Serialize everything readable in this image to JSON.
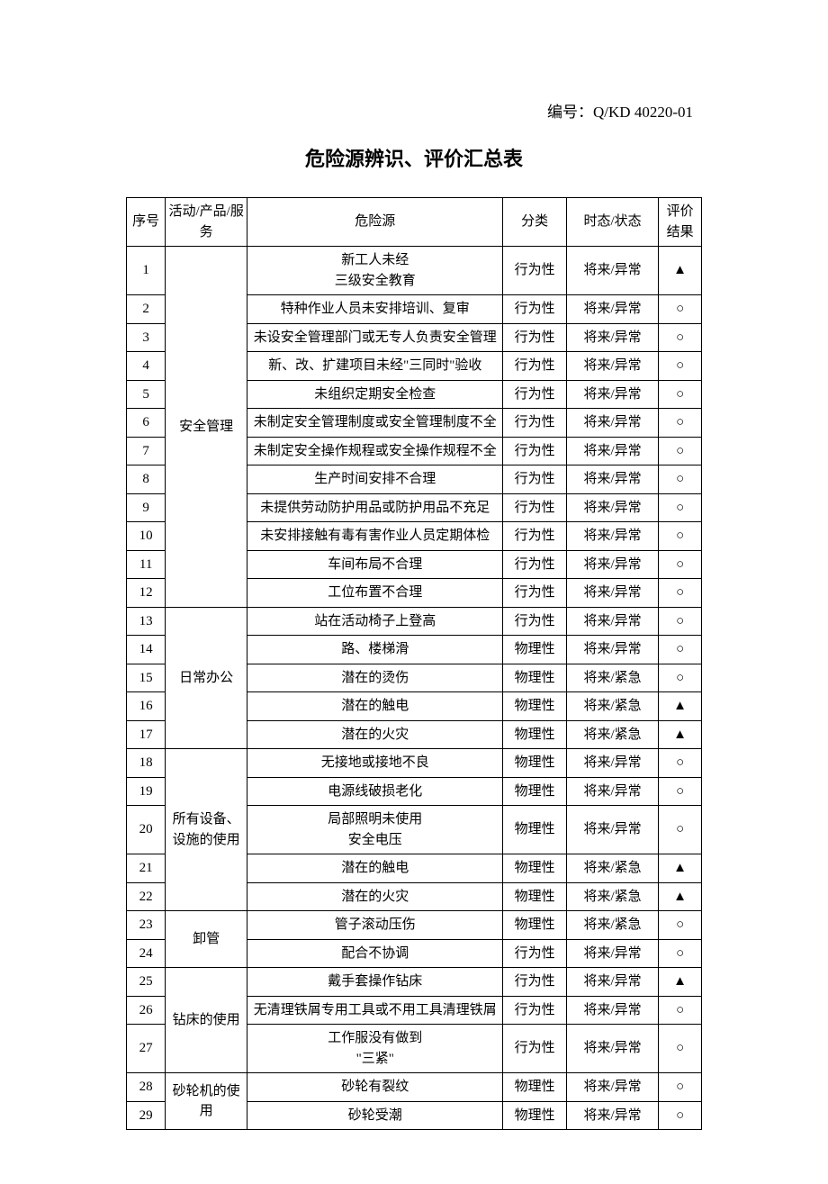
{
  "doc_number": "编号：Q/KD 40220-01",
  "title": "危险源辨识、评价汇总表",
  "headers": {
    "seq": "序号",
    "activity": "活动/产品/服务",
    "hazard": "危险源",
    "classification": "分类",
    "state": "时态/状态",
    "result": "评价结果"
  },
  "rows": [
    {
      "seq": "1",
      "activity": "安全管理",
      "hazard": "新工人未经\n三级安全教育",
      "classification": "行为性",
      "state": "将来/异常",
      "result": "▲"
    },
    {
      "seq": "2",
      "activity": "",
      "hazard": "特种作业人员未安排培训、复审",
      "classification": "行为性",
      "state": "将来/异常",
      "result": "○"
    },
    {
      "seq": "3",
      "activity": "",
      "hazard": "未设安全管理部门或无专人负责安全管理",
      "classification": "行为性",
      "state": "将来/异常",
      "result": "○"
    },
    {
      "seq": "4",
      "activity": "",
      "hazard": "新、改、扩建项目未经\"三同时\"验收",
      "classification": "行为性",
      "state": "将来/异常",
      "result": "○"
    },
    {
      "seq": "5",
      "activity": "",
      "hazard": "未组织定期安全检查",
      "classification": "行为性",
      "state": "将来/异常",
      "result": "○"
    },
    {
      "seq": "6",
      "activity": "",
      "hazard": "未制定安全管理制度或安全管理制度不全",
      "classification": "行为性",
      "state": "将来/异常",
      "result": "○"
    },
    {
      "seq": "7",
      "activity": "",
      "hazard": "未制定安全操作规程或安全操作规程不全",
      "classification": "行为性",
      "state": "将来/异常",
      "result": "○"
    },
    {
      "seq": "8",
      "activity": "",
      "hazard": "生产时间安排不合理",
      "classification": "行为性",
      "state": "将来/异常",
      "result": "○"
    },
    {
      "seq": "9",
      "activity": "",
      "hazard": "未提供劳动防护用品或防护用品不充足",
      "classification": "行为性",
      "state": "将来/异常",
      "result": "○"
    },
    {
      "seq": "10",
      "activity": "",
      "hazard": "未安排接触有毒有害作业人员定期体检",
      "classification": "行为性",
      "state": "将来/异常",
      "result": "○"
    },
    {
      "seq": "11",
      "activity": "",
      "hazard": "车间布局不合理",
      "classification": "行为性",
      "state": "将来/异常",
      "result": "○"
    },
    {
      "seq": "12",
      "activity": "",
      "hazard": "工位布置不合理",
      "classification": "行为性",
      "state": "将来/异常",
      "result": "○"
    },
    {
      "seq": "13",
      "activity": "日常办公",
      "hazard": "站在活动椅子上登高",
      "classification": "行为性",
      "state": "将来/异常",
      "result": "○"
    },
    {
      "seq": "14",
      "activity": "",
      "hazard": "路、楼梯滑",
      "classification": "物理性",
      "state": "将来/异常",
      "result": "○"
    },
    {
      "seq": "15",
      "activity": "",
      "hazard": "潜在的烫伤",
      "classification": "物理性",
      "state": "将来/紧急",
      "result": "○"
    },
    {
      "seq": "16",
      "activity": "",
      "hazard": "潜在的触电",
      "classification": "物理性",
      "state": "将来/紧急",
      "result": "▲"
    },
    {
      "seq": "17",
      "activity": "",
      "hazard": "潜在的火灾",
      "classification": "物理性",
      "state": "将来/紧急",
      "result": "▲"
    },
    {
      "seq": "18",
      "activity": "所有设备、设施的使用",
      "hazard": "无接地或接地不良",
      "classification": "物理性",
      "state": "将来/异常",
      "result": "○"
    },
    {
      "seq": "19",
      "activity": "",
      "hazard": "电源线破损老化",
      "classification": "物理性",
      "state": "将来/异常",
      "result": "○"
    },
    {
      "seq": "20",
      "activity": "",
      "hazard": "局部照明未使用\n安全电压",
      "classification": "物理性",
      "state": "将来/异常",
      "result": "○"
    },
    {
      "seq": "21",
      "activity": "",
      "hazard": "潜在的触电",
      "classification": "物理性",
      "state": "将来/紧急",
      "result": "▲"
    },
    {
      "seq": "22",
      "activity": "",
      "hazard": "潜在的火灾",
      "classification": "物理性",
      "state": "将来/紧急",
      "result": "▲"
    },
    {
      "seq": "23",
      "activity": "卸管",
      "hazard": "管子滚动压伤",
      "classification": "物理性",
      "state": "将来/紧急",
      "result": "○"
    },
    {
      "seq": "24",
      "activity": "",
      "hazard": "配合不协调",
      "classification": "行为性",
      "state": "将来/异常",
      "result": "○"
    },
    {
      "seq": "25",
      "activity": "钻床的使用",
      "hazard": "戴手套操作钻床",
      "classification": "行为性",
      "state": "将来/异常",
      "result": "▲"
    },
    {
      "seq": "26",
      "activity": "",
      "hazard": "无清理铁屑专用工具或不用工具清理铁屑",
      "classification": "行为性",
      "state": "将来/异常",
      "result": "○"
    },
    {
      "seq": "27",
      "activity": "",
      "hazard": "工作服没有做到\n\"三紧\"",
      "classification": "行为性",
      "state": "将来/异常",
      "result": "○"
    },
    {
      "seq": "28",
      "activity": "砂轮机的使用",
      "hazard": "砂轮有裂纹",
      "classification": "物理性",
      "state": "将来/异常",
      "result": "○"
    },
    {
      "seq": "29",
      "activity": "",
      "hazard": "砂轮受潮",
      "classification": "物理性",
      "state": "将来/异常",
      "result": "○"
    }
  ],
  "activity_spans": [
    {
      "start": 0,
      "span": 12
    },
    {
      "start": 12,
      "span": 5
    },
    {
      "start": 17,
      "span": 5
    },
    {
      "start": 22,
      "span": 2
    },
    {
      "start": 24,
      "span": 3
    },
    {
      "start": 27,
      "span": 2
    }
  ]
}
